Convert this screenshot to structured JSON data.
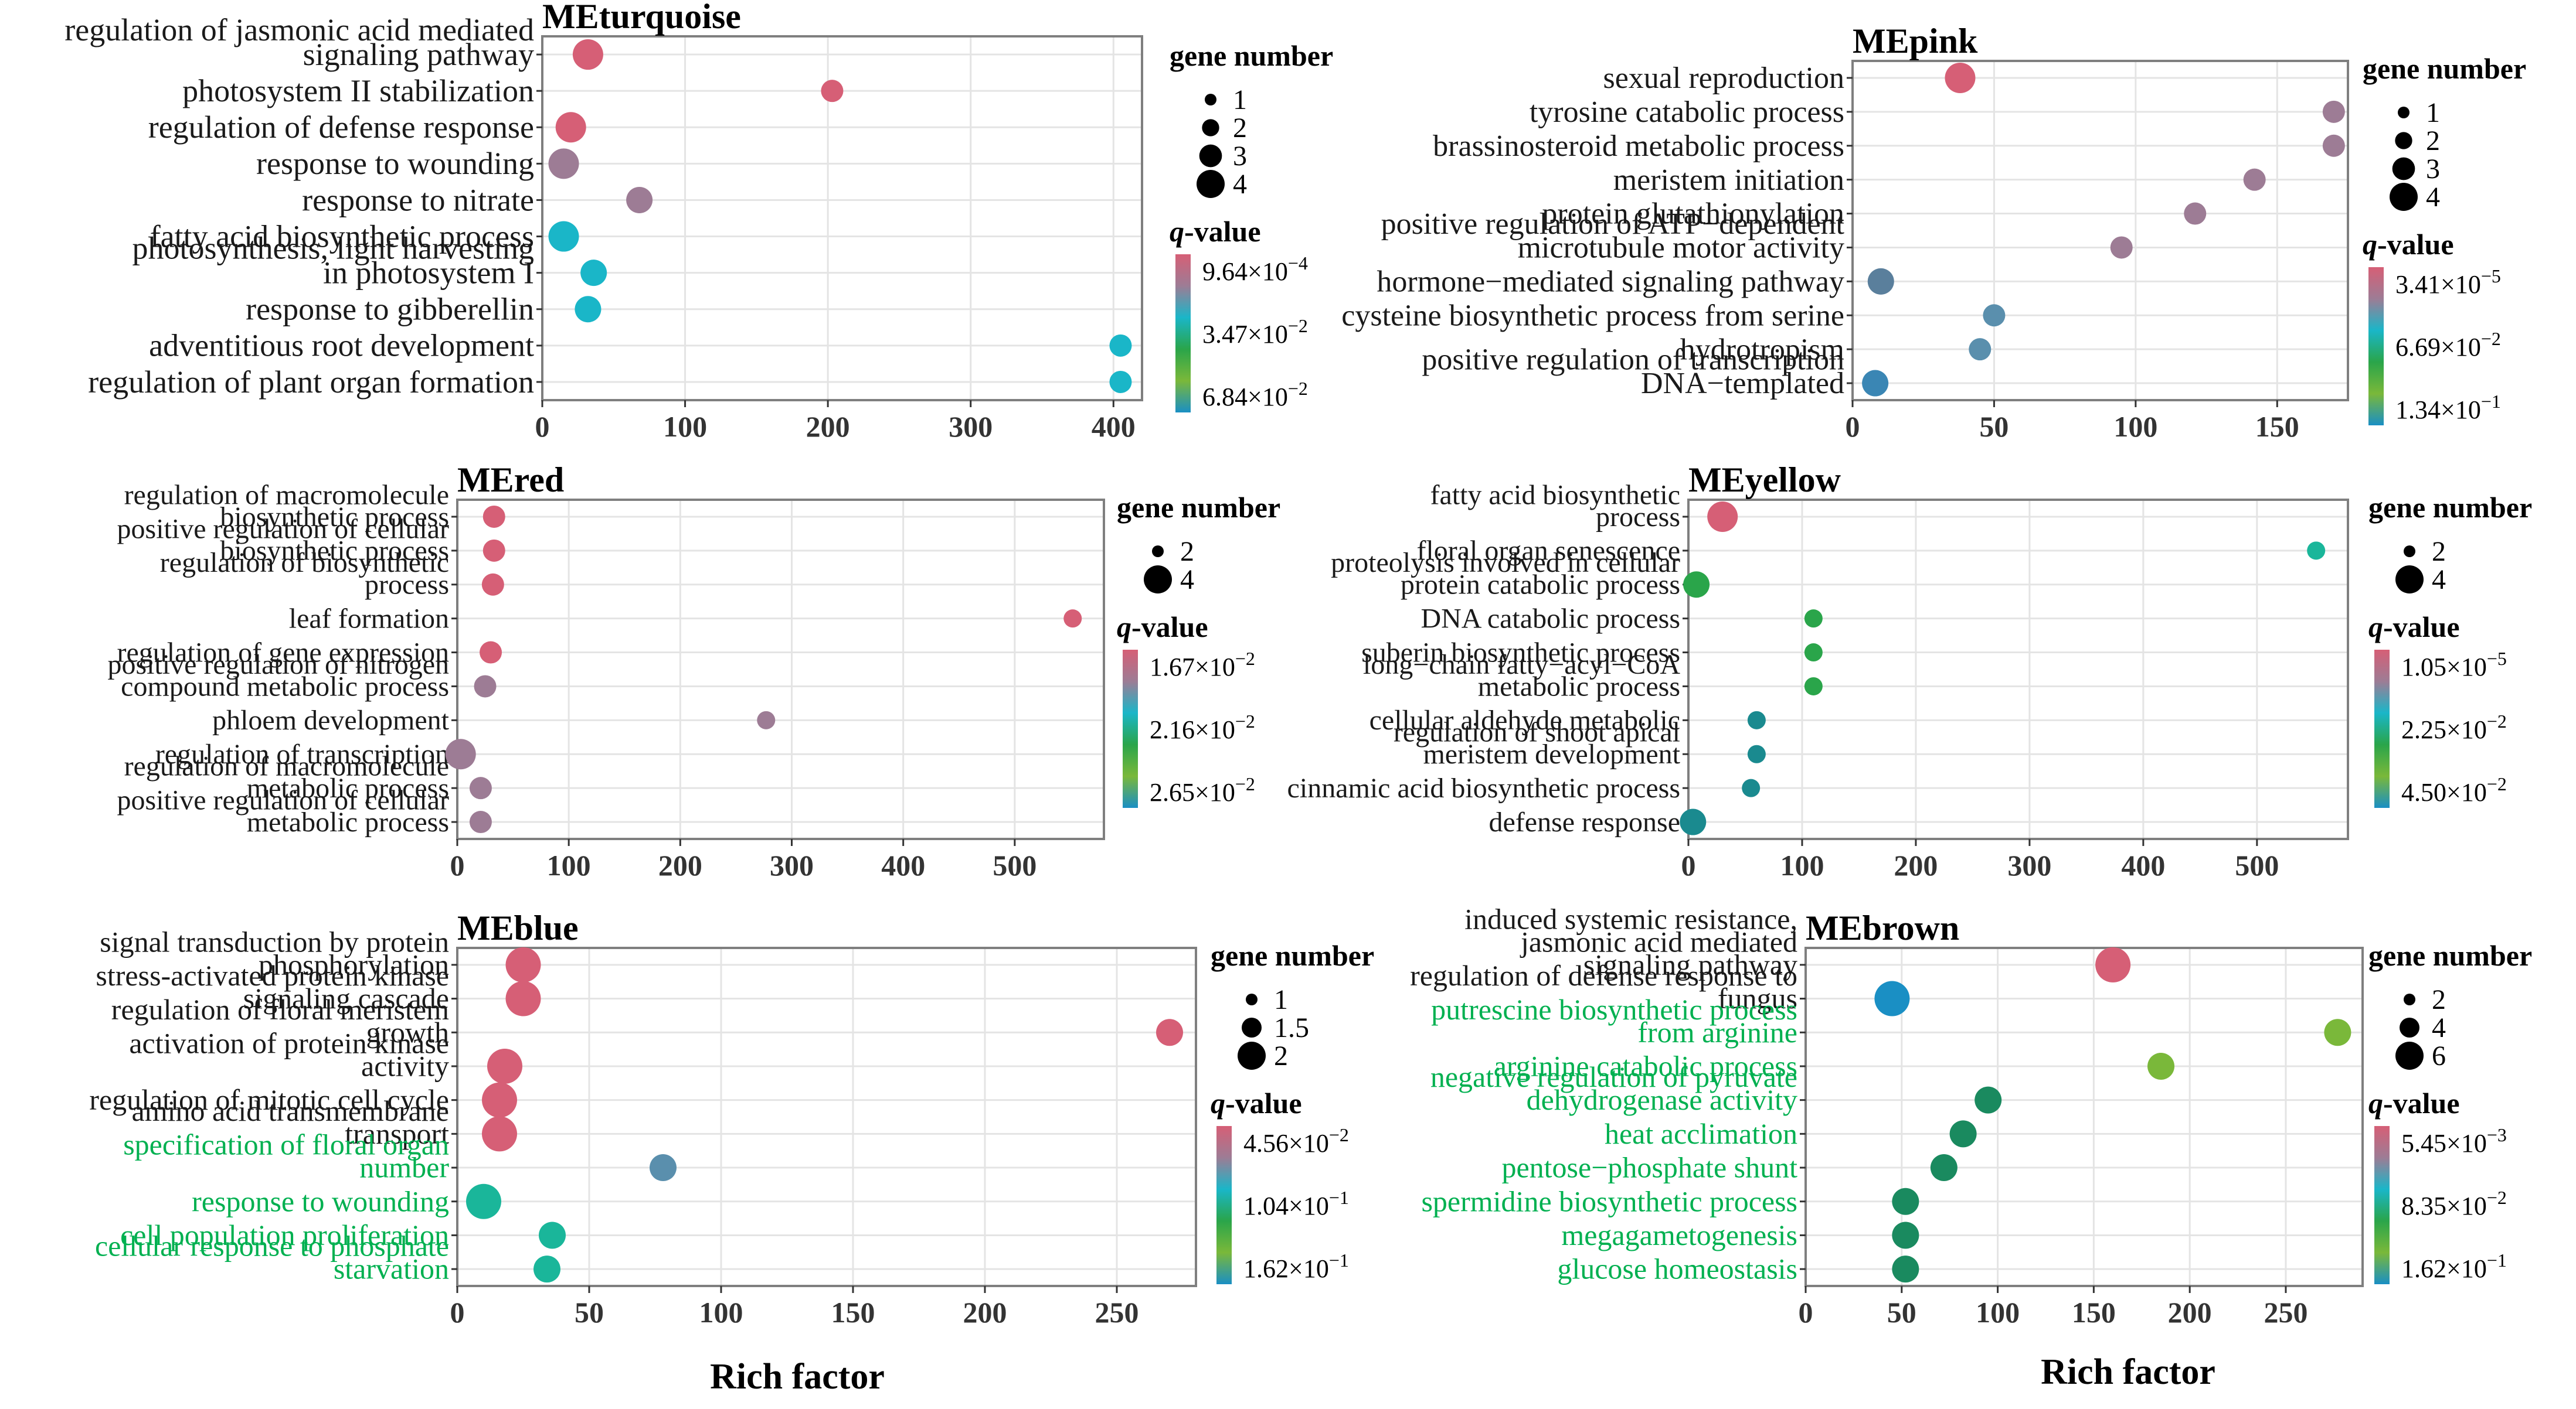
{
  "axis_title": "Rich factor",
  "colors": {
    "green_label": "#00b050",
    "text": "#1a1a1a",
    "tick": "#333333",
    "grid": "#e4e4e4",
    "frame": "#7f7f7f"
  },
  "color_scale": [
    "#d65f76",
    "#9d7c95",
    "#1ab6c8",
    "#2aa54a",
    "#7ab83a",
    "#1a8fc4"
  ],
  "legend": {
    "gene_number_title": "gene number",
    "q_value_q": "q",
    "q_value_rest": "-value"
  },
  "chart_data": [
    {
      "type": "scatter",
      "title": "MEturquoise",
      "xlim": [
        0,
        420
      ],
      "xticks": [
        "0",
        "100",
        "200",
        "300",
        "400"
      ],
      "size_legend": [
        "1",
        "2",
        "3",
        "4"
      ],
      "q_legend": [
        {
          "mantissa": "9.64×10",
          "exp": "−4"
        },
        {
          "mantissa": "3.47×10",
          "exp": "−2"
        },
        {
          "mantissa": "6.84×10",
          "exp": "−2"
        }
      ],
      "categories": [
        {
          "lines": [
            "regulation of jasmonic acid mediated",
            "signaling pathway"
          ],
          "x": 32,
          "size": 4,
          "color": "#d65f76",
          "green": false
        },
        {
          "lines": [
            "photosystem II stabilization"
          ],
          "x": 203,
          "size": 2,
          "color": "#d65f76",
          "green": false
        },
        {
          "lines": [
            "regulation of defense response"
          ],
          "x": 20,
          "size": 4,
          "color": "#d65f76",
          "green": false
        },
        {
          "lines": [
            "response to wounding"
          ],
          "x": 15,
          "size": 4,
          "color": "#9d7c95",
          "green": false
        },
        {
          "lines": [
            "response to nitrate"
          ],
          "x": 68,
          "size": 3,
          "color": "#9d7c95",
          "green": false
        },
        {
          "lines": [
            "fatty acid biosynthetic process"
          ],
          "x": 15,
          "size": 4,
          "color": "#1ab6c8",
          "green": false
        },
        {
          "lines": [
            "photosynthesis, light harvesting",
            "in photosystem I"
          ],
          "x": 36,
          "size": 3,
          "color": "#1ab6c8",
          "green": false
        },
        {
          "lines": [
            "response to gibberellin"
          ],
          "x": 32,
          "size": 3,
          "color": "#1ab6c8",
          "green": false
        },
        {
          "lines": [
            "adventitious root development"
          ],
          "x": 405,
          "size": 2,
          "color": "#1ab6c8",
          "green": false
        },
        {
          "lines": [
            "regulation of plant organ formation"
          ],
          "x": 405,
          "size": 2,
          "color": "#1ab6c8",
          "green": false
        }
      ]
    },
    {
      "type": "scatter",
      "title": "MEpink",
      "xlim": [
        0,
        175
      ],
      "xticks": [
        "0",
        "50",
        "100",
        "150"
      ],
      "size_legend": [
        "1",
        "2",
        "3",
        "4"
      ],
      "q_legend": [
        {
          "mantissa": "3.41×10",
          "exp": "−5"
        },
        {
          "mantissa": "6.69×10",
          "exp": "−2"
        },
        {
          "mantissa": "1.34×10",
          "exp": "−1"
        }
      ],
      "categories": [
        {
          "lines": [
            "sexual reproduction"
          ],
          "x": 38,
          "size": 4,
          "color": "#d65f76",
          "green": false
        },
        {
          "lines": [
            "tyrosine catabolic process"
          ],
          "x": 170,
          "size": 2,
          "color": "#9d7c95",
          "green": false
        },
        {
          "lines": [
            "brassinosteroid metabolic process"
          ],
          "x": 170,
          "size": 2,
          "color": "#9d7c95",
          "green": false
        },
        {
          "lines": [
            "meristem initiation"
          ],
          "x": 142,
          "size": 2,
          "color": "#9d7c95",
          "green": false
        },
        {
          "lines": [
            "protein glutathionylation"
          ],
          "x": 121,
          "size": 2,
          "color": "#9d7c95",
          "green": false
        },
        {
          "lines": [
            "positive regulation of ATP−dependent",
            "microtubule motor activity"
          ],
          "x": 95,
          "size": 2,
          "color": "#9d7c95",
          "green": false
        },
        {
          "lines": [
            "hormone−mediated signaling pathway"
          ],
          "x": 10,
          "size": 3,
          "color": "#5a7f9c",
          "green": false
        },
        {
          "lines": [
            "cysteine biosynthetic process from serine"
          ],
          "x": 50,
          "size": 2,
          "color": "#5a8fad",
          "green": false
        },
        {
          "lines": [
            "hydrotropism"
          ],
          "x": 45,
          "size": 2,
          "color": "#5a8fad",
          "green": false
        },
        {
          "lines": [
            "positive regulation of transcription",
            "DNA−templated"
          ],
          "x": 8,
          "size": 3,
          "color": "#3a86b4",
          "green": false
        }
      ]
    },
    {
      "type": "scatter",
      "title": "MEred",
      "xlim": [
        0,
        580
      ],
      "xticks": [
        "0",
        "100",
        "200",
        "300",
        "400",
        "500"
      ],
      "size_legend": [
        "2",
        "4"
      ],
      "q_legend": [
        {
          "mantissa": "1.67×10",
          "exp": "−2"
        },
        {
          "mantissa": "2.16×10",
          "exp": "−2"
        },
        {
          "mantissa": "2.65×10",
          "exp": "−2"
        }
      ],
      "categories": [
        {
          "lines": [
            "regulation of macromolecule",
            "biosynthetic process"
          ],
          "x": 33,
          "size": 2,
          "color": "#d65f76",
          "green": false
        },
        {
          "lines": [
            "positive regulation of cellular",
            "biosynthetic process"
          ],
          "x": 33,
          "size": 2,
          "color": "#d65f76",
          "green": false
        },
        {
          "lines": [
            "regulation of biosynthetic",
            "process"
          ],
          "x": 32,
          "size": 2,
          "color": "#d65f76",
          "green": false
        },
        {
          "lines": [
            "leaf formation"
          ],
          "x": 552,
          "size": 1,
          "color": "#d65f76",
          "green": false
        },
        {
          "lines": [
            "regulation of gene expression"
          ],
          "x": 30,
          "size": 2,
          "color": "#d65f76",
          "green": false
        },
        {
          "lines": [
            "positive regulation of nitrogen",
            "compound metabolic process"
          ],
          "x": 25,
          "size": 2,
          "color": "#9d7c95",
          "green": false
        },
        {
          "lines": [
            "phloem development"
          ],
          "x": 277,
          "size": 1,
          "color": "#9d7c95",
          "green": false
        },
        {
          "lines": [
            "regulation of transcription"
          ],
          "x": 3,
          "size": 4,
          "color": "#9d7c95",
          "green": false
        },
        {
          "lines": [
            "regulation of macromolecule",
            "metabolic process"
          ],
          "x": 21,
          "size": 2,
          "color": "#9d7c95",
          "green": false
        },
        {
          "lines": [
            "positive regulation of cellular",
            "metabolic process"
          ],
          "x": 21,
          "size": 2,
          "color": "#9d7c95",
          "green": false
        }
      ]
    },
    {
      "type": "scatter",
      "title": "MEyellow",
      "xlim": [
        0,
        580
      ],
      "xticks": [
        "0",
        "100",
        "200",
        "300",
        "400",
        "500"
      ],
      "size_legend": [
        "2",
        "4"
      ],
      "q_legend": [
        {
          "mantissa": "1.05×10",
          "exp": "−5"
        },
        {
          "mantissa": "2.25×10",
          "exp": "−2"
        },
        {
          "mantissa": "4.50×10",
          "exp": "−2"
        }
      ],
      "categories": [
        {
          "lines": [
            "fatty acid biosynthetic",
            "process"
          ],
          "x": 30,
          "size": 4,
          "color": "#d65f76",
          "green": false
        },
        {
          "lines": [
            "floral organ senescence"
          ],
          "x": 552,
          "size": 1,
          "color": "#1ab69a",
          "green": false
        },
        {
          "lines": [
            "proteolysis involved in cellular",
            "protein catabolic process"
          ],
          "x": 7,
          "size": 3,
          "color": "#2aa54a",
          "green": false
        },
        {
          "lines": [
            "DNA catabolic process"
          ],
          "x": 110,
          "size": 1,
          "color": "#2aa54a",
          "green": false
        },
        {
          "lines": [
            "suberin biosynthetic process"
          ],
          "x": 110,
          "size": 1,
          "color": "#2aa54a",
          "green": false
        },
        {
          "lines": [
            "long−chain fatty−acyl−CoA",
            "metabolic process"
          ],
          "x": 110,
          "size": 1,
          "color": "#2aa54a",
          "green": false
        },
        {
          "lines": [
            "cellular aldehyde metabolic"
          ],
          "x": 60,
          "size": 1,
          "color": "#1a8a8f",
          "green": false
        },
        {
          "lines": [
            "regulation of shoot apical",
            "meristem development"
          ],
          "x": 60,
          "size": 1,
          "color": "#1a8a8f",
          "green": false
        },
        {
          "lines": [
            "cinnamic acid biosynthetic process"
          ],
          "x": 55,
          "size": 1,
          "color": "#1a8a8f",
          "green": false
        },
        {
          "lines": [
            "defense response"
          ],
          "x": 4,
          "size": 3,
          "color": "#1a8a8f",
          "green": false
        }
      ]
    },
    {
      "type": "scatter",
      "title": "MEblue",
      "xlim": [
        0,
        280
      ],
      "xticks": [
        "0",
        "50",
        "100",
        "150",
        "200",
        "250"
      ],
      "size_legend": [
        "1",
        "1.5",
        "2"
      ],
      "q_legend": [
        {
          "mantissa": "4.56×10",
          "exp": "−2"
        },
        {
          "mantissa": "1.04×10",
          "exp": "−1"
        },
        {
          "mantissa": "1.62×10",
          "exp": "−1"
        }
      ],
      "categories": [
        {
          "lines": [
            "signal transduction by protein",
            "phosphorylation"
          ],
          "x": 25,
          "size": 2,
          "color": "#d65f76",
          "green": false
        },
        {
          "lines": [
            "stress-activated protein kinase",
            "signaling cascade"
          ],
          "x": 25,
          "size": 2,
          "color": "#d65f76",
          "green": false
        },
        {
          "lines": [
            "regulation of floral meristem",
            "growth"
          ],
          "x": 270,
          "size": 1,
          "color": "#d65f76",
          "green": false
        },
        {
          "lines": [
            "activation of protein kinase",
            "activity"
          ],
          "x": 18,
          "size": 2,
          "color": "#d65f76",
          "green": false
        },
        {
          "lines": [
            "regulation of mitotic cell cycle"
          ],
          "x": 16,
          "size": 2,
          "color": "#d65f76",
          "green": false
        },
        {
          "lines": [
            "amino acid transmembrane",
            "transport"
          ],
          "x": 16,
          "size": 2,
          "color": "#d65f76",
          "green": false
        },
        {
          "lines": [
            "specification of floral organ",
            "number"
          ],
          "x": 78,
          "size": 1,
          "color": "#5a8fad",
          "green": true
        },
        {
          "lines": [
            "response to wounding"
          ],
          "x": 10,
          "size": 2,
          "color": "#1ab69a",
          "green": true
        },
        {
          "lines": [
            "cell population proliferation"
          ],
          "x": 36,
          "size": 1,
          "color": "#1ab69a",
          "green": true
        },
        {
          "lines": [
            "cellular response to phosphate",
            "starvation"
          ],
          "x": 34,
          "size": 1,
          "color": "#1ab69a",
          "green": true
        }
      ]
    },
    {
      "type": "scatter",
      "title": "MEbrown",
      "xlim": [
        0,
        290
      ],
      "xticks": [
        "0",
        "50",
        "100",
        "150",
        "200",
        "250"
      ],
      "size_legend": [
        "2",
        "4",
        "6"
      ],
      "q_legend": [
        {
          "mantissa": "5.45×10",
          "exp": "−3"
        },
        {
          "mantissa": "8.35×10",
          "exp": "−2"
        },
        {
          "mantissa": "1.62×10",
          "exp": "−1"
        }
      ],
      "categories": [
        {
          "lines": [
            "induced systemic resistance,",
            "jasmonic acid mediated",
            "signaling pathway"
          ],
          "x": 160,
          "size": 2,
          "color": "#d65f76",
          "green": false
        },
        {
          "lines": [
            "regulation of defense response to",
            "fungus"
          ],
          "x": 45,
          "size": 2,
          "color": "#1a8fc4",
          "green": false
        },
        {
          "lines": [
            "putrescine biosynthetic process",
            "from arginine"
          ],
          "x": 277,
          "size": 1,
          "color": "#7ab83a",
          "green": true
        },
        {
          "lines": [
            "arginine catabolic process"
          ],
          "x": 185,
          "size": 1,
          "color": "#7ab83a",
          "green": true
        },
        {
          "lines": [
            "negative regulation of pyruvate",
            "dehydrogenase activity"
          ],
          "x": 95,
          "size": 1,
          "color": "#1a8a5f",
          "green": true
        },
        {
          "lines": [
            "heat acclimation"
          ],
          "x": 82,
          "size": 1,
          "color": "#1a8a5f",
          "green": true
        },
        {
          "lines": [
            "pentose−phosphate shunt"
          ],
          "x": 72,
          "size": 1,
          "color": "#1a8a5f",
          "green": true
        },
        {
          "lines": [
            "spermidine biosynthetic process"
          ],
          "x": 52,
          "size": 1,
          "color": "#1a8a5f",
          "green": true
        },
        {
          "lines": [
            "megagametogenesis"
          ],
          "x": 52,
          "size": 1,
          "color": "#1a8a5f",
          "green": true
        },
        {
          "lines": [
            "glucose homeostasis"
          ],
          "x": 52,
          "size": 1,
          "color": "#1a8a5f",
          "green": true
        }
      ]
    }
  ]
}
